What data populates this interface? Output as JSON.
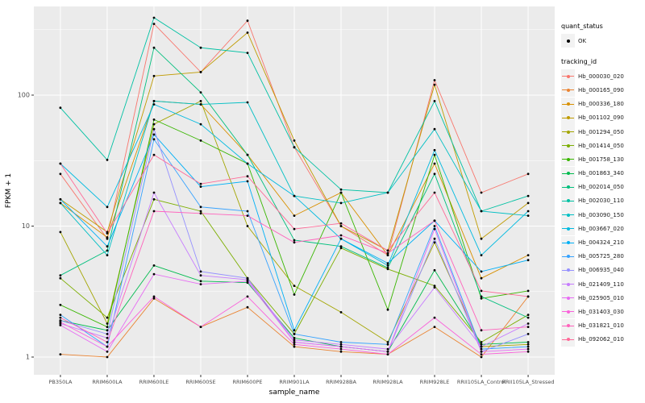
{
  "chart_data": {
    "type": "line",
    "title": "",
    "xlabel": "sample_name",
    "ylabel": "FPKM + 1",
    "yscale": "log10",
    "ylim": [
      0.73,
      470
    ],
    "yticks": [
      1,
      10,
      100
    ],
    "ytick_labels": [
      "1",
      "10",
      "100"
    ],
    "minor_ticks": [
      3.162,
      31.62,
      316.2
    ],
    "grid": "on",
    "plot_background": "#EBEBEB",
    "grid_color": "#FFFFFF",
    "point_color": "#000000",
    "legend_position": "right",
    "categories": [
      "PB350LA",
      "RRIM600LA",
      "RRIM600LE",
      "RRIM600SE",
      "RRIM600PE",
      "RRIM901LA",
      "RRIM928BA",
      "RRIM928LA",
      "RRIM928LE",
      "RRII105LA_Control",
      "RRII105LA_Stressed"
    ],
    "series": [
      {
        "name": "Hb_000030_020",
        "color": "#F8766D",
        "values": [
          25,
          8,
          350,
          150,
          370,
          40,
          10,
          6,
          130,
          18,
          25
        ]
      },
      {
        "name": "Hb_000165_090",
        "color": "#EA8331",
        "values": [
          1.05,
          1.0,
          2.8,
          1.7,
          2.4,
          1.2,
          1.1,
          1.05,
          1.7,
          1.0,
          2.9
        ]
      },
      {
        "name": "Hb_000336_180",
        "color": "#D89000",
        "values": [
          15,
          8.2,
          90,
          85,
          35,
          12,
          18,
          6,
          30,
          4,
          6
        ]
      },
      {
        "name": "Hb_001102_090",
        "color": "#C09B00",
        "values": [
          16,
          9,
          140,
          150,
          300,
          45,
          10,
          6.5,
          120,
          8,
          15
        ]
      },
      {
        "name": "Hb_001294_050",
        "color": "#A3A500",
        "values": [
          9,
          1.8,
          60,
          90,
          10,
          3.5,
          2.2,
          1.3,
          7.5,
          1.2,
          1.25
        ]
      },
      {
        "name": "Hb_001414_050",
        "color": "#7CAE00",
        "values": [
          4,
          2,
          16,
          13,
          4,
          1.5,
          6.8,
          4.7,
          3.5,
          1.3,
          2.1
        ]
      },
      {
        "name": "Hb_001758_130",
        "color": "#39B600",
        "values": [
          2.5,
          1.7,
          65,
          45,
          30,
          3,
          18,
          2.3,
          35,
          2.8,
          3.2
        ]
      },
      {
        "name": "Hb_001863_340",
        "color": "#00BB4E",
        "values": [
          1.9,
          1.6,
          5,
          3.8,
          3.7,
          1.4,
          1.2,
          1.1,
          4.6,
          1.25,
          1.3
        ]
      },
      {
        "name": "Hb_002014_050",
        "color": "#00BF7D",
        "values": [
          4.2,
          6.5,
          230,
          105,
          35,
          7.8,
          7,
          4.8,
          25,
          2.9,
          2.0
        ]
      },
      {
        "name": "Hb_002030_110",
        "color": "#00C1A3",
        "values": [
          80,
          32,
          390,
          230,
          210,
          40,
          19,
          18,
          90,
          13,
          17
        ]
      },
      {
        "name": "Hb_003090_150",
        "color": "#00BFC4",
        "values": [
          15,
          6,
          90,
          85,
          88,
          17,
          15,
          18,
          55,
          13,
          12
        ]
      },
      {
        "name": "Hb_003667_020",
        "color": "#00BAE0",
        "values": [
          30,
          14,
          85,
          60,
          30,
          17,
          8,
          5,
          38,
          6,
          13
        ]
      },
      {
        "name": "Hb_004324_210",
        "color": "#00B0F6",
        "values": [
          16,
          7,
          50,
          20,
          22,
          1.6,
          8,
          5.2,
          11,
          4.5,
          5.5
        ]
      },
      {
        "name": "Hb_005725_280",
        "color": "#35A2FF",
        "values": [
          2.1,
          1.2,
          46,
          14,
          13,
          1.5,
          1.3,
          1.25,
          10,
          1.15,
          1.2
        ]
      },
      {
        "name": "Hb_006935_040",
        "color": "#9590FF",
        "values": [
          1.9,
          1.5,
          55,
          4.5,
          4,
          1.3,
          1.2,
          1.1,
          8,
          1.1,
          1.5
        ]
      },
      {
        "name": "Hb_021409_110",
        "color": "#C77CFF",
        "values": [
          1.8,
          1.4,
          18,
          4.2,
          3.9,
          1.35,
          1.25,
          1.15,
          3.4,
          1.2,
          1.8
        ]
      },
      {
        "name": "Hb_025905_010",
        "color": "#E76BF3",
        "values": [
          1.75,
          1.1,
          4.3,
          3.6,
          3.8,
          1.3,
          1.2,
          1.1,
          9.5,
          1.1,
          1.15
        ]
      },
      {
        "name": "Hb_031403_030",
        "color": "#FA62DB",
        "values": [
          1.85,
          1.2,
          2.9,
          1.7,
          2.9,
          1.25,
          1.15,
          1.05,
          2.0,
          1.05,
          1.1
        ]
      },
      {
        "name": "Hb_031821_010",
        "color": "#FF62BC",
        "values": [
          2.0,
          1.3,
          13,
          12.5,
          12,
          7.5,
          8.5,
          6.2,
          11,
          1.6,
          1.7
        ]
      },
      {
        "name": "Hb_092062_010",
        "color": "#FF6A98",
        "values": [
          30,
          8.8,
          35,
          21,
          24,
          9.5,
          10.5,
          6.5,
          18,
          3.2,
          2.9
        ]
      }
    ]
  },
  "legend": {
    "quant_status_title": "quant_status",
    "quant_status_items": [
      {
        "label": "OK"
      }
    ],
    "tracking_title": "tracking_id"
  }
}
